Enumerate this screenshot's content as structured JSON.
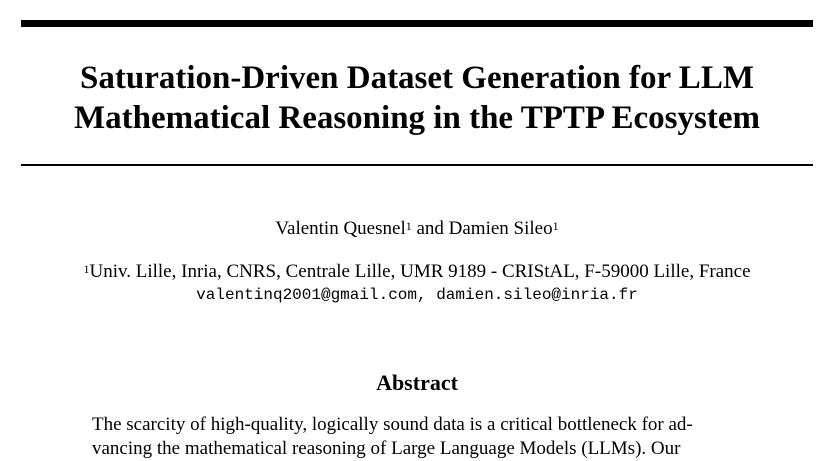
{
  "title": {
    "line1": "Saturation-Driven Dataset Generation for LLM",
    "line2": "Mathematical Reasoning in the TPTP Ecosystem"
  },
  "authors": {
    "author1": "Valentin Quesnel",
    "author1_sup": "1",
    "connector": " and ",
    "author2": "Damien Sileo",
    "author2_sup": "1"
  },
  "affiliation": {
    "sup": "1",
    "text": "Univ. Lille, Inria, CNRS, Centrale Lille, UMR 9189 - CRIStAL, F-59000 Lille, France"
  },
  "emails": "valentinq2001@gmail.com, damien.sileo@inria.fr",
  "abstract": {
    "heading": "Abstract",
    "line1": "The scarcity of high-quality, logically sound data is a critical bottleneck for ad-",
    "line2": "vancing the mathematical reasoning of Large Language Models (LLMs). Our"
  }
}
